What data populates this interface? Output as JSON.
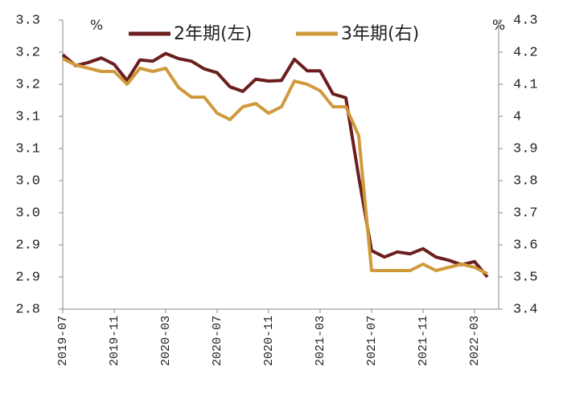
{
  "chart_data": {
    "type": "line",
    "left_unit": "%",
    "right_unit": "%",
    "categories": [
      "2019-07",
      null,
      null,
      null,
      "2019-11",
      null,
      null,
      null,
      "2020-03",
      null,
      null,
      null,
      "2020-07",
      null,
      null,
      null,
      "2020-11",
      null,
      null,
      null,
      "2021-03",
      null,
      null,
      null,
      "2021-07",
      null,
      null,
      null,
      "2021-11",
      null,
      null,
      null,
      "2022-03",
      null
    ],
    "series": [
      {
        "name": "2年期(左)",
        "color": "#6b1f1f",
        "values": [
          3.196,
          3.179,
          3.184,
          3.191,
          3.181,
          3.156,
          3.188,
          3.186,
          3.198,
          3.19,
          3.186,
          3.174,
          3.168,
          3.146,
          3.139,
          3.158,
          3.155,
          3.156,
          3.189,
          3.171,
          3.171,
          3.135,
          3.129,
          3.006,
          2.891,
          2.881,
          2.889,
          2.886,
          2.894,
          2.881,
          2.876,
          2.869,
          2.874,
          2.85
        ]
      },
      {
        "name": "3年期(右)",
        "color": "#d09a3c",
        "axis": "y2",
        "values": [
          4.18,
          4.16,
          4.15,
          4.14,
          4.14,
          4.1,
          4.15,
          4.14,
          4.15,
          4.09,
          4.06,
          4.06,
          4.01,
          3.99,
          4.03,
          4.04,
          4.01,
          4.03,
          4.11,
          4.1,
          4.08,
          4.03,
          4.03,
          3.94,
          3.52,
          3.52,
          3.52,
          3.52,
          3.54,
          3.52,
          3.53,
          3.54,
          3.53,
          3.51
        ]
      }
    ],
    "ylim": [
      2.8,
      3.25
    ],
    "yticks": [
      {
        "value": 2.8,
        "label": "2.8"
      },
      {
        "value": 2.85,
        "label": "2.9"
      },
      {
        "value": 2.9,
        "label": "2.9"
      },
      {
        "value": 2.95,
        "label": "3.0"
      },
      {
        "value": 3.0,
        "label": "3.0"
      },
      {
        "value": 3.05,
        "label": "3.1"
      },
      {
        "value": 3.1,
        "label": "3.1"
      },
      {
        "value": 3.15,
        "label": "3.2"
      },
      {
        "value": 3.2,
        "label": "3.2"
      },
      {
        "value": 3.25,
        "label": "3.3"
      }
    ],
    "y2lim": [
      3.4,
      4.3
    ],
    "y2ticks": [
      3.4,
      3.5,
      3.6,
      3.7,
      3.8,
      3.9,
      4.0,
      4.1,
      4.2,
      4.3
    ]
  }
}
